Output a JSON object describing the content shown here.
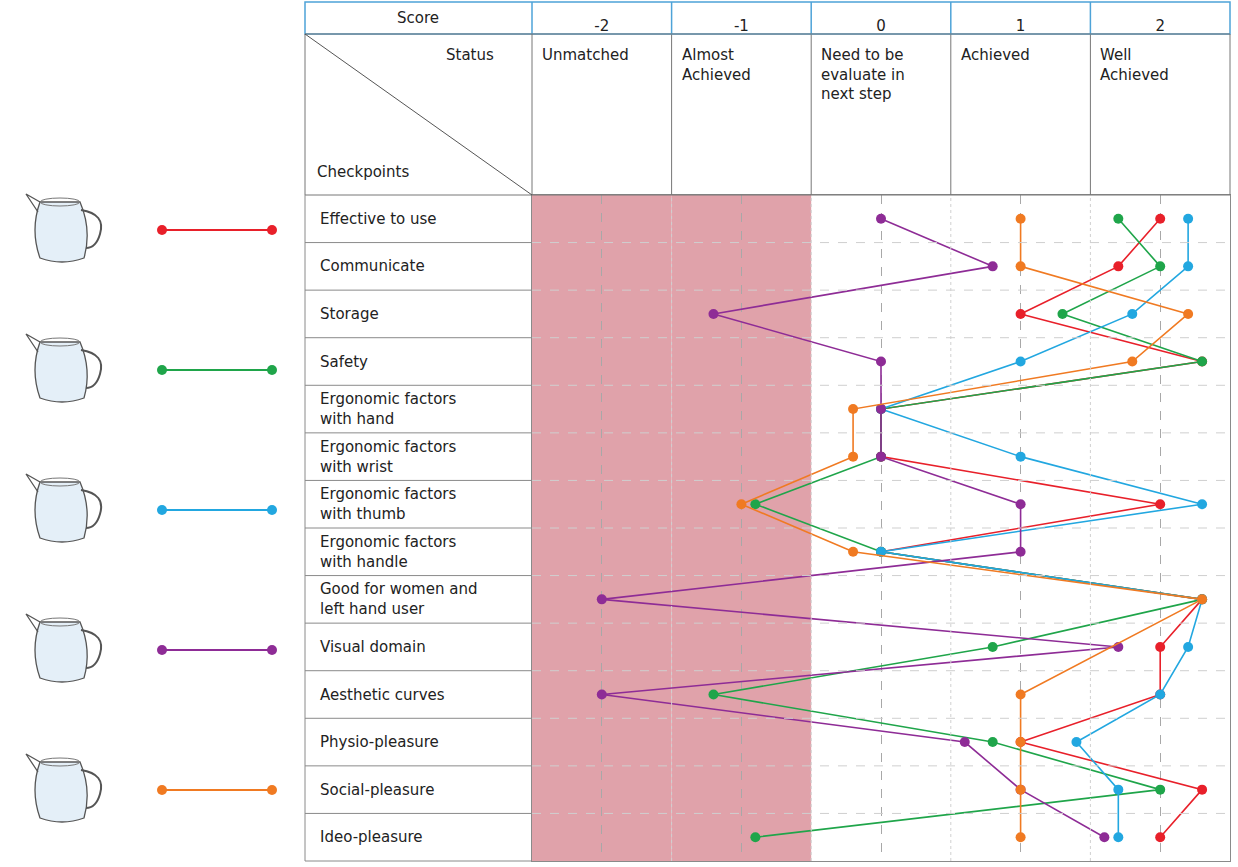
{
  "chart_data": {
    "type": "line",
    "orientation": "horizontal",
    "header": {
      "score_label": "Score",
      "status_label": "Status",
      "checkpoints_label": "Checkpoints"
    },
    "statuses": [
      "Unmatched",
      "Almost Achieved",
      "Need to be evaluate in next step",
      "Achieved",
      "Well Achieved"
    ],
    "categories": [
      "Effective to use",
      "Communicate",
      "Storage",
      "Safety",
      "Ergonomic factors with hand",
      "Ergonomic factors with wrist",
      "Ergonomic factors with thumb",
      "Ergonomic factors with handle",
      "Good for women and left hand user",
      "Visual domain",
      "Aesthetic curves",
      "Physio-pleasure",
      "Social-pleasure",
      "Ideo-pleasure"
    ],
    "xlim": [
      -2.5,
      2.5
    ],
    "xticks": [
      -2,
      -1,
      0,
      1,
      2
    ],
    "grid": true,
    "marker": "circle",
    "series": [
      {
        "color": "#e8202a",
        "values": [
          2,
          1.7,
          1,
          2.3,
          0,
          0,
          2,
          0,
          2.3,
          2,
          2,
          1,
          2.3,
          2
        ]
      },
      {
        "color": "#1fa54a",
        "values": [
          1.7,
          2,
          1.3,
          2.3,
          0,
          0,
          -0.9,
          0,
          2.3,
          0.8,
          -1.2,
          0.8,
          2,
          -0.9
        ]
      },
      {
        "color": "#22a7e0",
        "values": [
          2.2,
          2.2,
          1.8,
          1,
          0,
          1,
          2.3,
          0,
          2.3,
          2.2,
          2,
          1.4,
          1.7,
          1.7
        ]
      },
      {
        "color": "#8e2c96",
        "values": [
          0,
          0.8,
          -1.2,
          0,
          0,
          0,
          1,
          1,
          -2,
          1.7,
          -2,
          0.6,
          1,
          1.6
        ]
      },
      {
        "color": "#f07a22",
        "values": [
          1,
          1,
          2.2,
          1.8,
          -0.2,
          -0.2,
          -1,
          -0.2,
          2.3,
          null,
          1,
          1,
          1,
          1
        ]
      }
    ]
  }
}
